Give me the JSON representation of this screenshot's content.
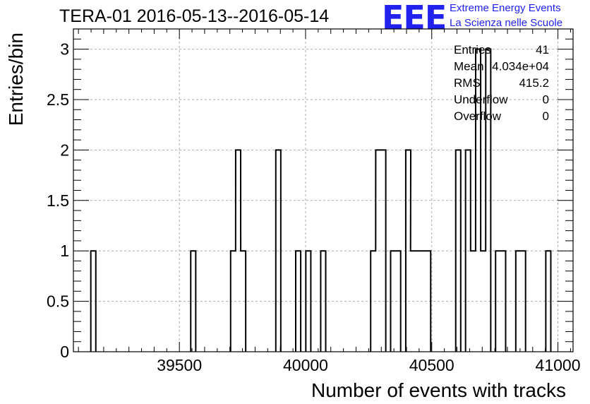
{
  "title": "TERA-01 2016-05-13--2016-05-14",
  "logo": {
    "mark": "EEE",
    "line1": "Extreme Energy Events",
    "line2": "La Scienza nelle Scuole",
    "color": "#2222ee"
  },
  "chart_data": {
    "type": "histogram",
    "xlabel": "Number of events with tracks",
    "ylabel": "Entries/bin",
    "xlim": [
      39080,
      41060
    ],
    "ylim": [
      0,
      3.2
    ],
    "bin_width": 19.8,
    "grid": true,
    "x_ticks": [
      39500,
      40000,
      40500,
      41000
    ],
    "x_tick_labels": [
      "39500",
      "40000",
      "40500",
      "41000"
    ],
    "y_ticks": [
      0,
      0.5,
      1,
      1.5,
      2,
      2.5,
      3
    ],
    "y_tick_labels": [
      "0",
      "0.5",
      "1",
      "1.5",
      "2",
      "2.5",
      "3"
    ],
    "bins": [
      {
        "x": 39149,
        "value": 1
      },
      {
        "x": 39545,
        "value": 1
      },
      {
        "x": 39703,
        "value": 1
      },
      {
        "x": 39723,
        "value": 2
      },
      {
        "x": 39743,
        "value": 1
      },
      {
        "x": 39882,
        "value": 2
      },
      {
        "x": 39961,
        "value": 1
      },
      {
        "x": 40001,
        "value": 1
      },
      {
        "x": 40060,
        "value": 1
      },
      {
        "x": 40258,
        "value": 1
      },
      {
        "x": 40278,
        "value": 2
      },
      {
        "x": 40298,
        "value": 2
      },
      {
        "x": 40337,
        "value": 1
      },
      {
        "x": 40357,
        "value": 1
      },
      {
        "x": 40397,
        "value": 2
      },
      {
        "x": 40416,
        "value": 1
      },
      {
        "x": 40436,
        "value": 1
      },
      {
        "x": 40456,
        "value": 1
      },
      {
        "x": 40476,
        "value": 1
      },
      {
        "x": 40595,
        "value": 2
      },
      {
        "x": 40634,
        "value": 2
      },
      {
        "x": 40654,
        "value": 1
      },
      {
        "x": 40674,
        "value": 3
      },
      {
        "x": 40694,
        "value": 1
      },
      {
        "x": 40714,
        "value": 3
      },
      {
        "x": 40753,
        "value": 1
      },
      {
        "x": 40773,
        "value": 1
      },
      {
        "x": 40833,
        "value": 1
      },
      {
        "x": 40852,
        "value": 1
      },
      {
        "x": 40952,
        "value": 1
      }
    ],
    "stats": [
      {
        "label": "Entries",
        "value": "41"
      },
      {
        "label": "Mean",
        "value": "4.034e+04"
      },
      {
        "label": "RMS",
        "value": "415.2"
      },
      {
        "label": "Underflow",
        "value": "0"
      },
      {
        "label": "Overflow",
        "value": "0"
      }
    ]
  }
}
